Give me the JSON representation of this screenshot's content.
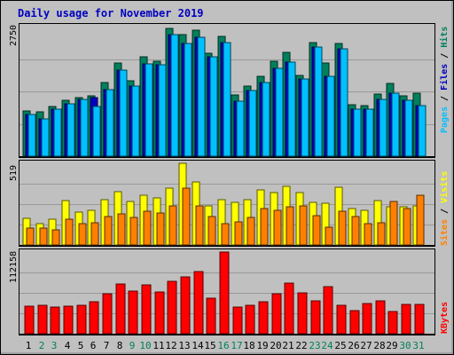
{
  "chart_data": {
    "type": "bar",
    "title": "Daily usage for November 2019",
    "categories": [
      "1",
      "2",
      "3",
      "4",
      "5",
      "6",
      "7",
      "8",
      "9",
      "10",
      "11",
      "12",
      "13",
      "14",
      "15",
      "16",
      "17",
      "18",
      "19",
      "20",
      "21",
      "22",
      "23",
      "24",
      "25",
      "26",
      "27",
      "28",
      "29",
      "30",
      "31"
    ],
    "weekend_days": [
      "2",
      "3",
      "9",
      "10",
      "16",
      "17",
      "23",
      "24",
      "30",
      "31"
    ],
    "colors": {
      "background": "#c0c0c0",
      "title": "#0000c0",
      "hits": "#00805c",
      "files": "#00c0ff",
      "pages": "#00c0ff",
      "visits": "#ffff00",
      "sites": "#ff8000",
      "kbytes": "#ff0000",
      "weekday_label": "#000000",
      "weekend_label": "#00805c"
    },
    "panels": [
      {
        "name": "top",
        "axis_max_label": "2750",
        "ylim": [
          0,
          2750
        ],
        "right_label": [
          {
            "text": "Pages",
            "color": "#00c0ff"
          },
          {
            "text": " / ",
            "color": "#000000"
          },
          {
            "text": "Files",
            "color": "#0000c0"
          },
          {
            "text": " / ",
            "color": "#000000"
          },
          {
            "text": "Hits",
            "color": "#00805c"
          }
        ],
        "series": [
          {
            "name": "Hits",
            "color": "#00805c",
            "values": [
              960,
              940,
              1050,
              1190,
              1250,
              1290,
              1560,
              1970,
              1600,
              2110,
              2010,
              2720,
              2580,
              2680,
              2180,
              2550,
              1300,
              1480,
              1690,
              2020,
              2210,
              1710,
              2420,
              1970,
              2390,
              1100,
              1080,
              1310,
              1550,
              1290,
              1340
            ]
          },
          {
            "name": "Files",
            "color": "#0000c0",
            "values": [
              880,
              800,
              1000,
              1120,
              1200,
              1250,
              1420,
              1830,
              1480,
              1960,
              1940,
              2580,
              2390,
              2520,
              2110,
              2420,
              1170,
              1400,
              1560,
              1860,
              2000,
              1640,
              2320,
              1690,
              2270,
              1000,
              1000,
              1200,
              1330,
              1190,
              1070
            ]
          },
          {
            "name": "Pages",
            "color": "#00c0ff",
            "values": [
              880,
              800,
              1000,
              1120,
              1200,
              1050,
              1420,
              1830,
              1480,
              1960,
              1940,
              2580,
              2390,
              2520,
              2110,
              2420,
              1170,
              1400,
              1560,
              1860,
              2000,
              1640,
              2320,
              1690,
              2270,
              1000,
              1000,
              1200,
              1330,
              1190,
              1070
            ]
          }
        ]
      },
      {
        "name": "middle",
        "axis_max_label": "519",
        "ylim": [
          0,
          519
        ],
        "right_label": [
          {
            "text": "Sites",
            "color": "#ff8000"
          },
          {
            "text": " / ",
            "color": "#000000"
          },
          {
            "text": "Visits",
            "color": "#ffff00"
          }
        ],
        "series": [
          {
            "name": "Visits",
            "color": "#ffff00",
            "values": [
              170,
              135,
              165,
              280,
              210,
              220,
              290,
              340,
              275,
              315,
              300,
              360,
              519,
              400,
              250,
              290,
              270,
              285,
              350,
              335,
              375,
              335,
              270,
              265,
              365,
              230,
              220,
              280,
              240,
              240,
              250
            ]
          },
          {
            "name": "Sites",
            "color": "#ff8000",
            "values": [
              110,
              105,
              95,
              165,
              135,
              140,
              180,
              200,
              175,
              215,
              205,
              250,
              360,
              250,
              180,
              135,
              145,
              175,
              230,
              220,
              240,
              250,
              185,
              115,
              215,
              180,
              135,
              140,
              275,
              230,
              315
            ]
          }
        ]
      },
      {
        "name": "bottom",
        "axis_max_label": "112158",
        "ylim": [
          0,
          112158
        ],
        "right_label": [
          {
            "text": "KBytes",
            "color": "#ff0000"
          }
        ],
        "series": [
          {
            "name": "KBytes",
            "color": "#ff0000",
            "values": [
              38000,
              38500,
              37000,
              38000,
              39000,
              44000,
              55000,
              68000,
              58000,
              67000,
              57000,
              72000,
              78000,
              85000,
              49000,
              112158,
              37000,
              38500,
              44000,
              55000,
              70000,
              56000,
              45000,
              65000,
              39000,
              32000,
              42000,
              45000,
              30000,
              40000,
              40000
            ]
          }
        ]
      }
    ]
  }
}
